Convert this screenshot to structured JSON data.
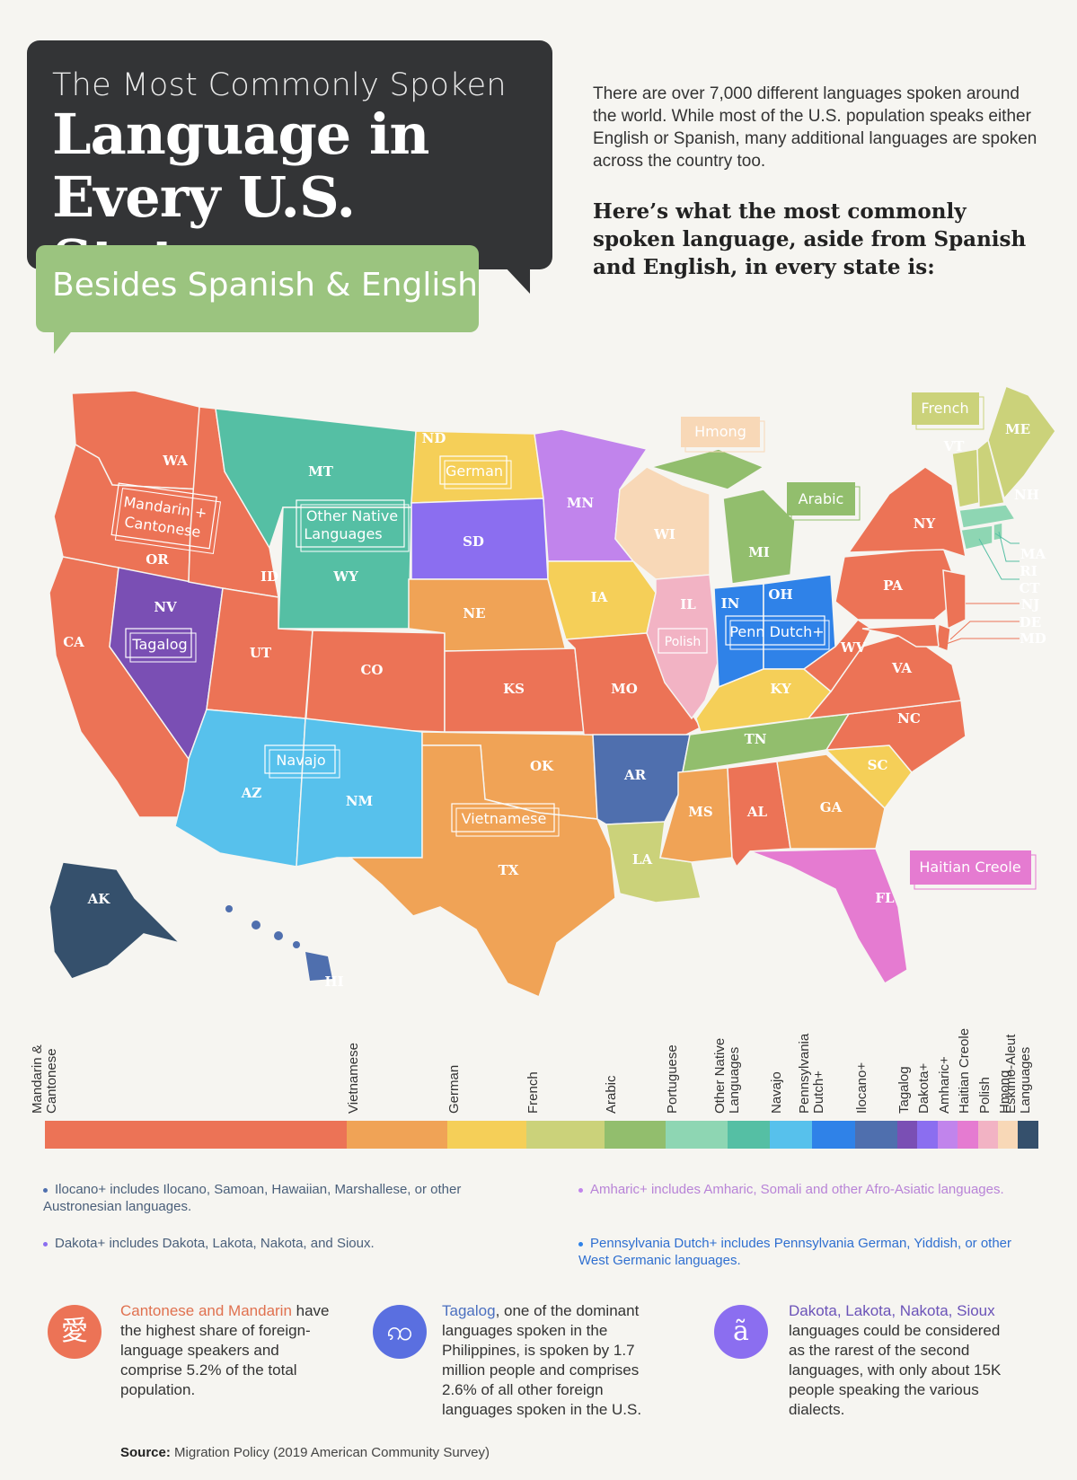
{
  "header": {
    "title_light": "The Most Commonly Spoken",
    "title_bold": "Language in Every U.S. State",
    "subtitle": "Besides Spanish & English"
  },
  "intro": {
    "text": "There are over 7,000 different languages spoken around the world. While most of the U.S. population speaks either English or Spanish, many additional languages are spoken across the country too.",
    "lead": "Here’s what the most commonly spoken language, aside from Spanish and English, in every state is:"
  },
  "colors": {
    "mandarin": "#ec7356",
    "vietnamese": "#f0a356",
    "german": "#f5cf58",
    "french": "#cbd27a",
    "arabic": "#92be6d",
    "portuguese": "#8ed6b3",
    "other_native": "#55bfa4",
    "navajo": "#57c1ec",
    "penn_dutch": "#2f82e8",
    "ilocano": "#4f6fae",
    "tagalog": "#7a4fb4",
    "dakota": "#8b6ef0",
    "amharic": "#c184ec",
    "haitian": "#e57bd1",
    "polish": "#f2b3c4",
    "hmong": "#f8d8b7",
    "eskimo": "#35506c"
  },
  "map": {
    "state_labels": [
      "WA",
      "OR",
      "CA",
      "NV",
      "ID",
      "MT",
      "WY",
      "UT",
      "CO",
      "AZ",
      "NM",
      "ND",
      "SD",
      "NE",
      "KS",
      "OK",
      "TX",
      "MN",
      "IA",
      "MO",
      "AR",
      "LA",
      "WI",
      "IL",
      "MI",
      "IN",
      "OH",
      "KY",
      "TN",
      "MS",
      "AL",
      "GA",
      "FL",
      "SC",
      "NC",
      "VA",
      "WV",
      "PA",
      "NY",
      "VT",
      "NH",
      "ME",
      "MA",
      "RI",
      "CT",
      "NJ",
      "DE",
      "MD",
      "AK",
      "HI"
    ],
    "callouts": {
      "mandarin": "Mandarin + Cantonese",
      "other_native": "Other Native Languages",
      "tagalog": "Tagalog",
      "german": "German",
      "navajo": "Navajo",
      "vietnamese": "Vietnamese",
      "polish": "Polish",
      "penn_dutch": "Penn Dutch+",
      "hmong": "Hmong",
      "arabic": "Arabic",
      "french": "French",
      "haitian": "Haitian Creole"
    }
  },
  "legend": [
    {
      "label": "Mandarin & Cantonese",
      "color": "#ec7356",
      "share": 27
    },
    {
      "label": "Vietnamese",
      "color": "#f0a356",
      "share": 9
    },
    {
      "label": "German",
      "color": "#f5cf58",
      "share": 7
    },
    {
      "label": "French",
      "color": "#cbd27a",
      "share": 7
    },
    {
      "label": "Arabic",
      "color": "#92be6d",
      "share": 5.5
    },
    {
      "label": "Portuguese",
      "color": "#8ed6b3",
      "share": 5.5
    },
    {
      "label": "Other Native Languages",
      "color": "#55bfa4",
      "share": 3.8
    },
    {
      "label": "Navajo",
      "color": "#57c1ec",
      "share": 3.8
    },
    {
      "label": "Pennsylvania Dutch+",
      "color": "#2f82e8",
      "share": 3.8
    },
    {
      "label": "Ilocano+",
      "color": "#4f6fae",
      "share": 3.8
    },
    {
      "label": "Tagalog",
      "color": "#7a4fb4",
      "share": 1.8
    },
    {
      "label": "Dakota+",
      "color": "#8b6ef0",
      "share": 1.8
    },
    {
      "label": "Amharic+",
      "color": "#c184ec",
      "share": 1.8
    },
    {
      "label": "Haitian Creole",
      "color": "#e57bd1",
      "share": 1.8
    },
    {
      "label": "Polish",
      "color": "#f2b3c4",
      "share": 1.8
    },
    {
      "label": "Hmong",
      "color": "#f8d8b7",
      "share": 1.8
    },
    {
      "label": "Eskimo-Aleut Languages",
      "color": "#35506c",
      "share": 1.8
    }
  ],
  "notes": {
    "ilocano": "Ilocano+ includes Ilocano, Samoan, Hawaiian, Marshallese, or other Austronesian languages.",
    "dakota": "Dakota+ includes Dakota, Lakota, Nakota, and Sioux.",
    "amharic": "Amharic+ includes Amharic, Somali and other Afro-Asiatic languages.",
    "penn": "Pennsylvania Dutch+ includes Pennsylvania German, Yiddish, or other West Germanic languages."
  },
  "facts": [
    {
      "icon": "愛",
      "highlight": "Cantonese and Mandarin",
      "text": " have the highest share of foreign-language speakers and comprise 5.2% of the total population."
    },
    {
      "icon": "ꩡ",
      "highlight": "Tagalog",
      "text": ", one of the dominant languages spoken in the Philippines, is spoken by 1.7 million people and comprises 2.6% of all other foreign languages spoken in the U.S."
    },
    {
      "icon": "ã",
      "highlight": "Dakota, Lakota, Nakota, Sioux",
      "text": " languages could be considered as the rarest of the second languages, with only about 15K people speaking the various dialects."
    }
  ],
  "source": {
    "label": "Source:",
    "text": "Migration Policy (2019 American Community Survey)"
  }
}
